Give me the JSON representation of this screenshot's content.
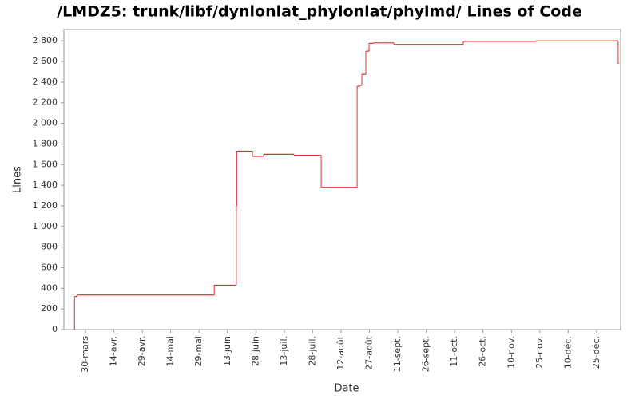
{
  "chart_data": {
    "type": "step-line",
    "title": "/LMDZ5: trunk/libf/dynlonlat_phylonlat/phylmd/ Lines of Code",
    "x_label": "Date",
    "y_label": "Lines",
    "series": [
      {
        "name": "Lines",
        "color": "#e03030",
        "x": [
          83.1,
          83.2,
          84.4,
          157,
          168.7,
          168.9,
          177.2,
          183.1,
          199.1,
          213.5,
          232.5,
          234.1,
          235,
          237.1,
          238.8,
          240.9,
          251.9,
          288.6,
          327,
          370.4
        ],
        "values": [
          0,
          320,
          335,
          430,
          1200,
          1730,
          1680,
          1700,
          1690,
          1380,
          2360,
          2370,
          2475,
          2700,
          2775,
          2780,
          2765,
          2795,
          2800,
          2580
        ]
      }
    ],
    "xlim": [
      77.6,
      371.7
    ],
    "xticks": [
      {
        "value": 89,
        "label": "30-mars"
      },
      {
        "value": 104,
        "label": "14-avr."
      },
      {
        "value": 119,
        "label": "29-avr."
      },
      {
        "value": 134,
        "label": "14-mai"
      },
      {
        "value": 149,
        "label": "29-mai"
      },
      {
        "value": 164,
        "label": "13-juin"
      },
      {
        "value": 179,
        "label": "28-juin"
      },
      {
        "value": 194,
        "label": "13-juil."
      },
      {
        "value": 209,
        "label": "28-juil."
      },
      {
        "value": 224,
        "label": "12-août"
      },
      {
        "value": 239,
        "label": "27-août"
      },
      {
        "value": 254,
        "label": "11-sept."
      },
      {
        "value": 269,
        "label": "26-sept."
      },
      {
        "value": 284,
        "label": "11-oct."
      },
      {
        "value": 299,
        "label": "26-oct."
      },
      {
        "value": 314,
        "label": "10-nov."
      },
      {
        "value": 329,
        "label": "25-nov."
      },
      {
        "value": 344,
        "label": "10-déc."
      },
      {
        "value": 359,
        "label": "25-déc."
      }
    ],
    "ylim": [
      0,
      2910
    ],
    "yticks": [
      0,
      200,
      400,
      600,
      800,
      {
        "value": 1000,
        "label": "1 000"
      },
      {
        "value": 1200,
        "label": "1 200"
      },
      {
        "value": 1400,
        "label": "1 400"
      },
      {
        "value": 1600,
        "label": "1 600"
      },
      {
        "value": 1800,
        "label": "1 800"
      },
      {
        "value": 2000,
        "label": "2 000"
      },
      {
        "value": 2200,
        "label": "2 200"
      },
      {
        "value": 2400,
        "label": "2 400"
      },
      {
        "value": 2600,
        "label": "2 600"
      },
      {
        "value": 2800,
        "label": "2 800"
      }
    ],
    "grid": false
  }
}
